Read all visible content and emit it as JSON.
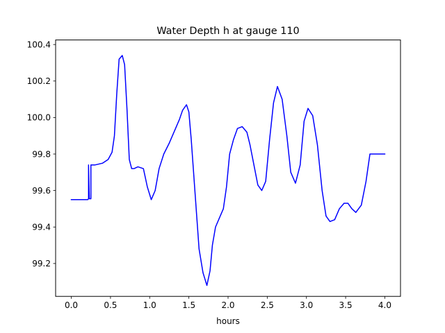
{
  "chart_data": {
    "type": "line",
    "title": "Water Depth h at gauge 110",
    "xlabel": "hours",
    "ylabel": "",
    "xlim": [
      -0.2,
      4.2
    ],
    "ylim": [
      99.02,
      100.425
    ],
    "xticks": [
      0.0,
      0.5,
      1.0,
      1.5,
      2.0,
      2.5,
      3.0,
      3.5,
      4.0
    ],
    "xtick_labels": [
      "0.0",
      "0.5",
      "1.0",
      "1.5",
      "2.0",
      "2.5",
      "3.0",
      "3.5",
      "4.0"
    ],
    "yticks": [
      99.2,
      99.4,
      99.6,
      99.8,
      100.0,
      100.2,
      100.4
    ],
    "ytick_labels": [
      "99.2",
      "99.4",
      "99.6",
      "99.8",
      "100.0",
      "100.2",
      "100.4"
    ],
    "grid": false,
    "series": [
      {
        "color": "#0000ff",
        "x": [
          0.0,
          0.21,
          0.22,
          0.22,
          0.23,
          0.24,
          0.25,
          0.25,
          0.26,
          0.3,
          0.4,
          0.47,
          0.52,
          0.55,
          0.58,
          0.61,
          0.65,
          0.68,
          0.71,
          0.74,
          0.77,
          0.8,
          0.85,
          0.92,
          0.97,
          1.02,
          1.07,
          1.12,
          1.18,
          1.25,
          1.32,
          1.38,
          1.42,
          1.47,
          1.5,
          1.53,
          1.58,
          1.63,
          1.68,
          1.73,
          1.77,
          1.8,
          1.84,
          1.89,
          1.94,
          1.98,
          2.02,
          2.07,
          2.12,
          2.18,
          2.24,
          2.28,
          2.33,
          2.38,
          2.43,
          2.48,
          2.53,
          2.58,
          2.63,
          2.69,
          2.75,
          2.8,
          2.86,
          2.92,
          2.97,
          3.02,
          3.08,
          3.14,
          3.2,
          3.25,
          3.3,
          3.36,
          3.42,
          3.48,
          3.53,
          3.58,
          3.63,
          3.7,
          3.76,
          3.81,
          3.86,
          3.93,
          4.0
        ],
        "y": [
          99.55,
          99.55,
          99.555,
          99.74,
          99.555,
          99.555,
          99.555,
          99.74,
          99.74,
          99.74,
          99.75,
          99.77,
          99.81,
          99.9,
          100.13,
          100.32,
          100.34,
          100.29,
          100.05,
          99.77,
          99.72,
          99.72,
          99.73,
          99.72,
          99.62,
          99.55,
          99.6,
          99.72,
          99.8,
          99.86,
          99.93,
          99.99,
          100.04,
          100.07,
          100.03,
          99.88,
          99.58,
          99.28,
          99.15,
          99.08,
          99.16,
          99.3,
          99.4,
          99.45,
          99.5,
          99.62,
          99.8,
          99.88,
          99.94,
          99.95,
          99.92,
          99.85,
          99.74,
          99.63,
          99.6,
          99.65,
          99.88,
          100.08,
          100.17,
          100.1,
          99.9,
          99.7,
          99.64,
          99.74,
          99.98,
          100.05,
          100.01,
          99.85,
          99.6,
          99.46,
          99.43,
          99.44,
          99.5,
          99.53,
          99.53,
          99.5,
          99.48,
          99.52,
          99.65,
          99.8,
          99.8,
          99.8,
          99.8
        ]
      }
    ]
  }
}
